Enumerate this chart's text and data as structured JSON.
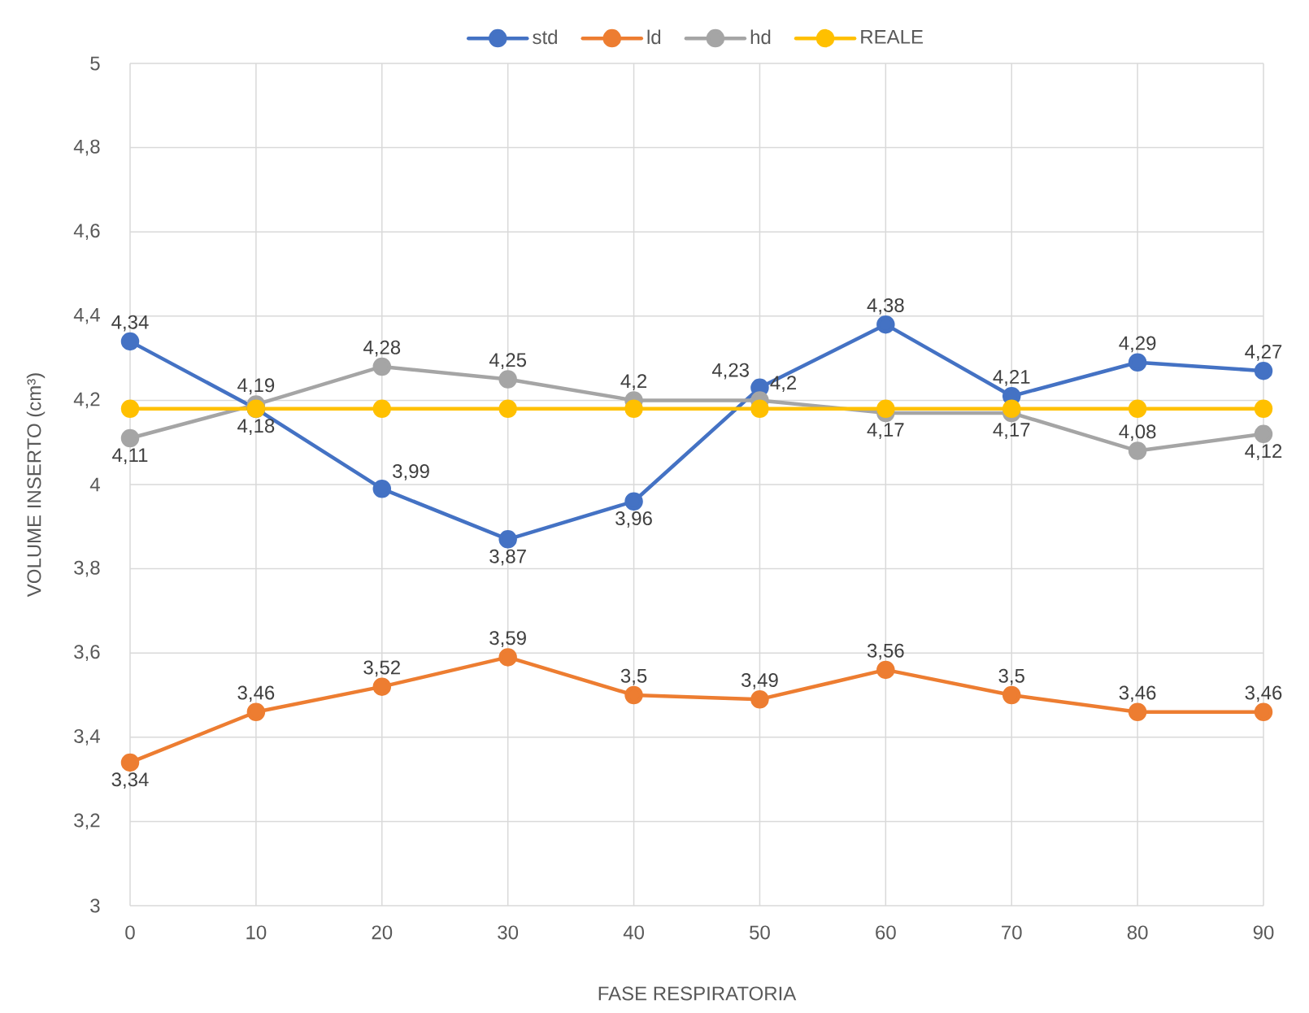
{
  "chart_data": {
    "type": "line",
    "xlabel": "FASE RESPIRATORIA",
    "ylabel": "VOLUME INSERTO (cm³)",
    "x": [
      0,
      10,
      20,
      30,
      40,
      50,
      60,
      70,
      80,
      90
    ],
    "xlim": [
      0,
      90
    ],
    "xticks": [
      0,
      10,
      20,
      30,
      40,
      50,
      60,
      70,
      80,
      90
    ],
    "ylim": [
      3,
      5
    ],
    "yticks": [
      3,
      {
        "value": 3.2,
        "label": "3,2"
      },
      {
        "value": 3.4,
        "label": "3,4"
      },
      {
        "value": 3.6,
        "label": "3,6"
      },
      {
        "value": 3.8,
        "label": "3,8"
      },
      4,
      {
        "value": 4.2,
        "label": "4,2"
      },
      {
        "value": 4.4,
        "label": "4,4"
      },
      {
        "value": 4.6,
        "label": "4,6"
      },
      {
        "value": 4.8,
        "label": "4,8"
      },
      5
    ],
    "grid": true,
    "legend": "top",
    "marker": "circle",
    "line_style": "solid",
    "series": [
      {
        "name": "std",
        "color": "#4472c4",
        "values": [
          4.34,
          4.18,
          3.99,
          3.87,
          3.96,
          4.23,
          4.38,
          4.21,
          4.29,
          4.27
        ],
        "value_labels": [
          "4,34",
          "4,18",
          "3,99",
          "3,87",
          "3,96",
          "4,23",
          "4,38",
          "4,21",
          "4,29",
          "4,27"
        ]
      },
      {
        "name": "ld",
        "color": "#ed7d31",
        "values": [
          3.34,
          3.46,
          3.52,
          3.59,
          3.5,
          3.49,
          3.56,
          3.5,
          3.46,
          3.46
        ],
        "value_labels": [
          "3,34",
          "3,46",
          "3,52",
          "3,59",
          "3,5",
          "3,49",
          "3,56",
          "3,5",
          "3,46",
          "3,46"
        ]
      },
      {
        "name": "hd",
        "color": "#a5a5a5",
        "values": [
          4.11,
          4.19,
          4.28,
          4.25,
          4.2,
          4.2,
          4.17,
          4.17,
          4.08,
          4.12
        ],
        "value_labels": [
          "4,11",
          "4,19",
          "4,28",
          "4,25",
          "4,2",
          "4,2",
          "4,17",
          "4,17",
          "4,08",
          "4,12"
        ]
      },
      {
        "name": "REALE",
        "color": "#ffc000",
        "values": [
          4.18,
          4.18,
          4.18,
          4.18,
          4.18,
          4.18,
          4.18,
          4.18,
          4.18,
          4.18
        ]
      }
    ]
  }
}
